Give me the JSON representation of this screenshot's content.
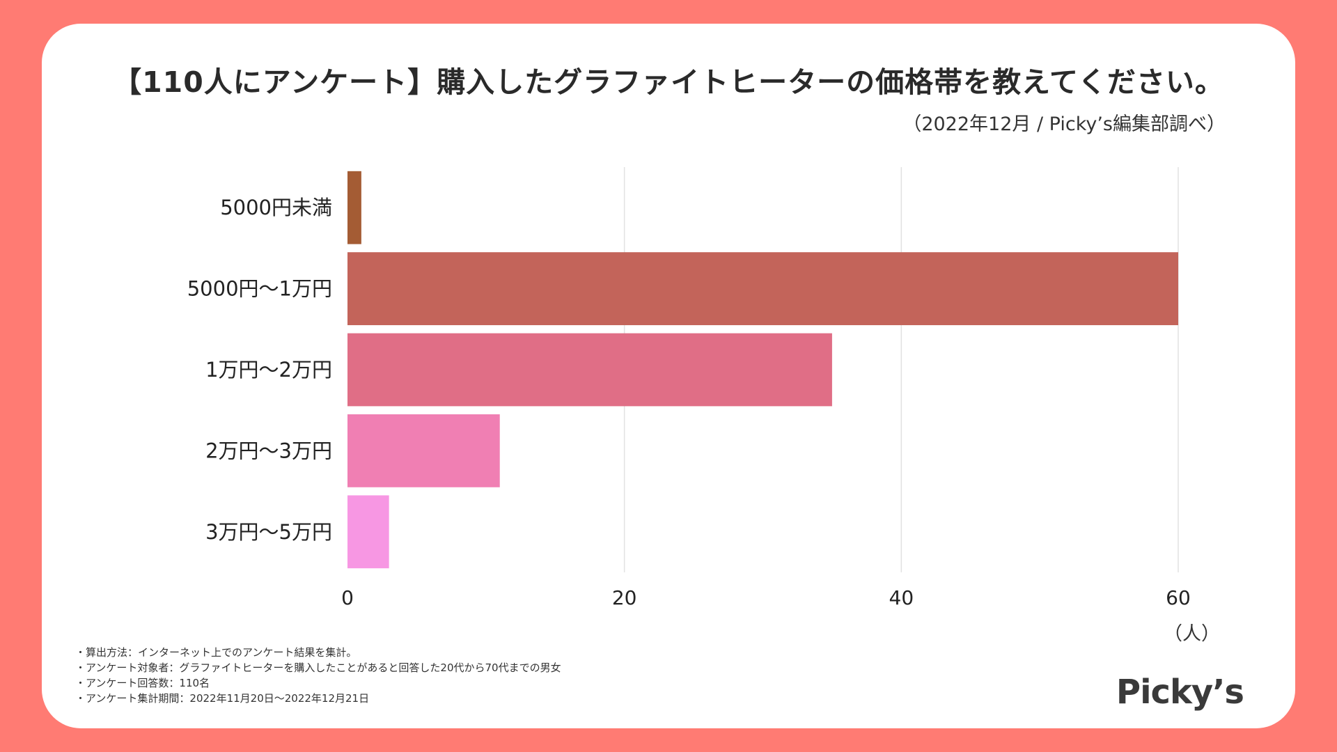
{
  "title": "【110人にアンケート】購入したグラファイトヒーターの価格帯を教えてください。",
  "source": "（2022年12月 / Picky’s編集部調べ）",
  "unit_label": "（人）",
  "notes": [
    "・算出方法：インターネット上でのアンケート結果を集計。",
    "・アンケート対象者：グラファイトヒーターを購入したことがあると回答した20代から70代までの男女",
    "・アンケート回答数：110名",
    "・アンケート集計期間：2022年11月20日〜2022年12月21日"
  ],
  "logo": "Picky’s",
  "colors": {
    "background": "#ff7b73",
    "grid": "#e2e2e2"
  },
  "chart_data": {
    "type": "bar",
    "orientation": "horizontal",
    "title": "【110人にアンケート】購入したグラファイトヒーターの価格帯を教えてください。",
    "xlabel": "（人）",
    "ylabel": "",
    "categories": [
      "5000円未満",
      "5000円〜1万円",
      "1万円〜2万円",
      "2万円〜3万円",
      "3万円〜5万円"
    ],
    "values": [
      1,
      60,
      35,
      11,
      3
    ],
    "bar_colors": [
      "#a45c34",
      "#c3645a",
      "#e06e86",
      "#f07fb3",
      "#f797e3"
    ],
    "xlim": [
      0,
      60
    ],
    "xticks": [
      0,
      20,
      40,
      60
    ],
    "grid": true
  }
}
